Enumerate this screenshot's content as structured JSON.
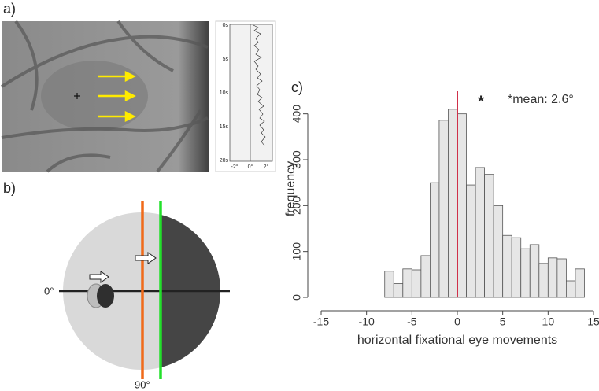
{
  "panels": {
    "a": {
      "label": "a)",
      "trace_yticks": [
        "0s",
        "5s",
        "10s",
        "15s",
        "20s"
      ],
      "trace_xticks": [
        "-2°",
        "0°",
        "2°"
      ]
    },
    "b": {
      "label": "b)",
      "angle_horizontal": "0°",
      "angle_vertical": "90°"
    },
    "c": {
      "label": "c)"
    }
  },
  "chart_data": {
    "type": "histogram",
    "xlabel": "horizontal fixational eye movements",
    "ylabel": "frequency",
    "annotation_star": "*",
    "annotation": "*mean: 2.6°",
    "bins": [
      -8,
      -7,
      -6,
      -5,
      -4,
      -3,
      -2,
      -1,
      0,
      1,
      2,
      3,
      4,
      5,
      6,
      7,
      8,
      9,
      10,
      11,
      12,
      13,
      14
    ],
    "counts": [
      57,
      30,
      62,
      60,
      91,
      250,
      386,
      410,
      400,
      245,
      283,
      268,
      200,
      135,
      130,
      106,
      115,
      74,
      86,
      84,
      36,
      62
    ],
    "color": "#e6e6e6",
    "vline": 0,
    "vline_color": "#d0304a",
    "xlim": [
      -15,
      15
    ],
    "xticks": [
      -15,
      -10,
      -5,
      0,
      5,
      10,
      15
    ],
    "ylim": [
      0,
      420
    ],
    "yticks": [
      0,
      100,
      200,
      300,
      400
    ]
  }
}
